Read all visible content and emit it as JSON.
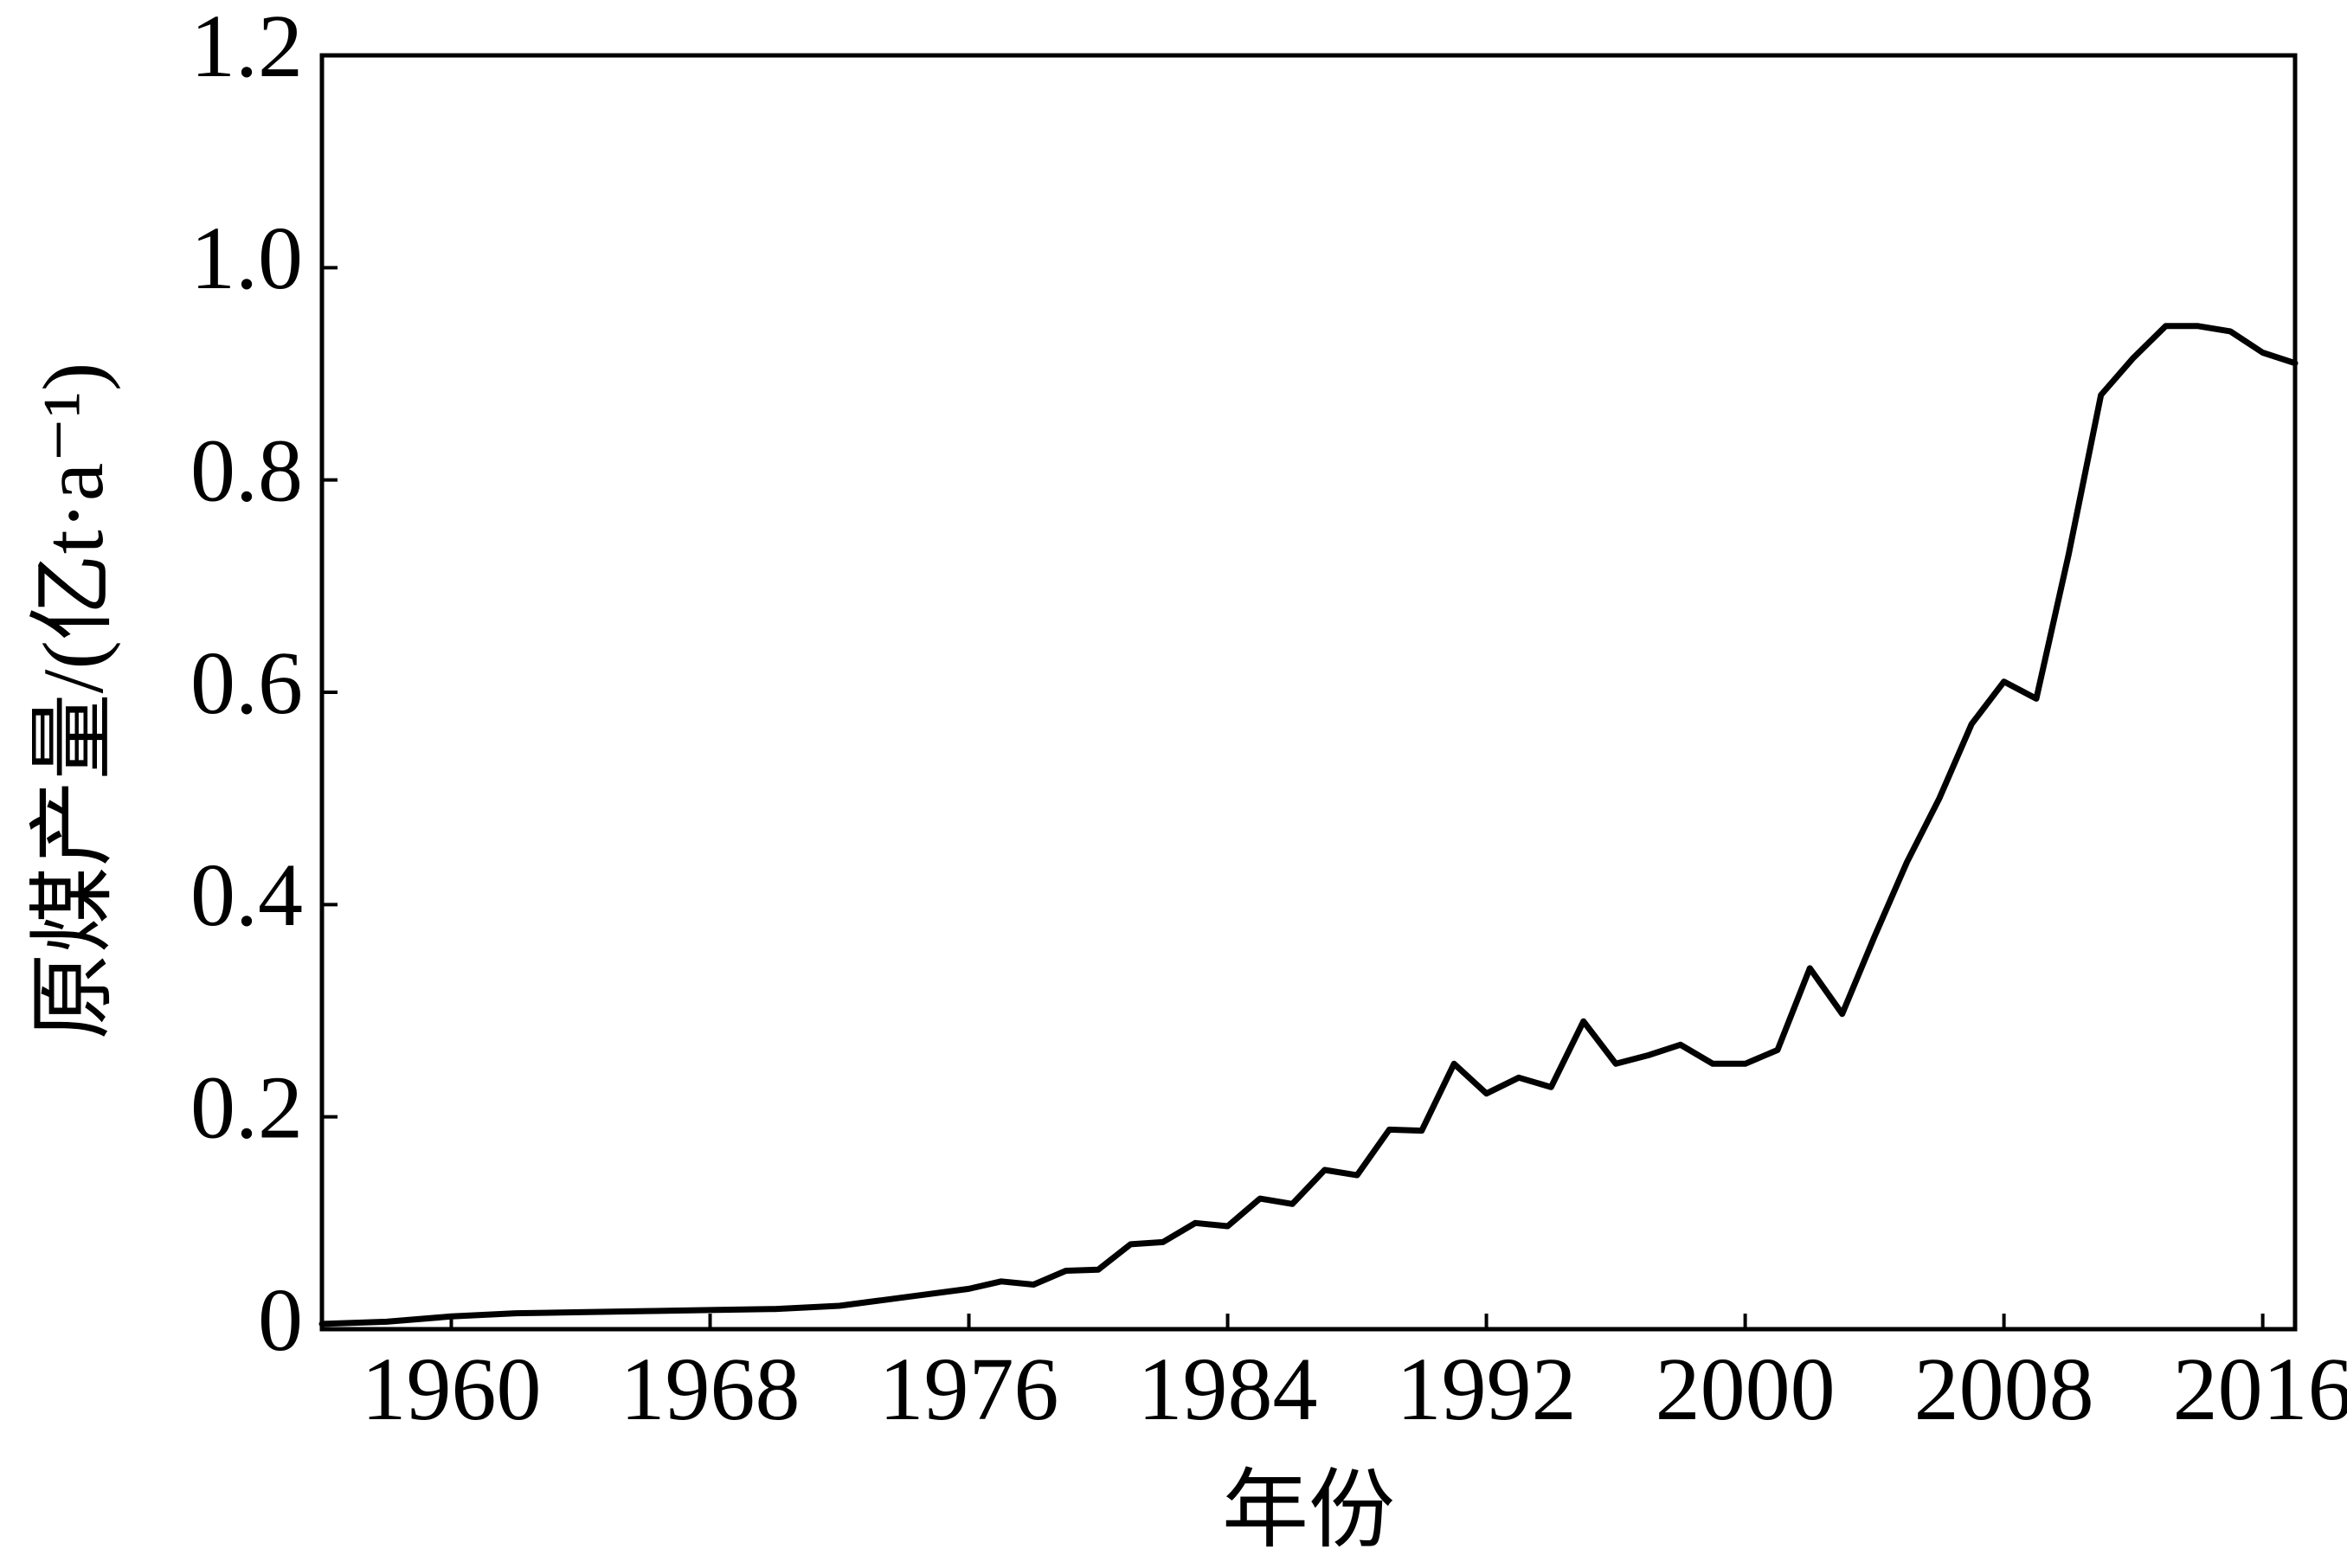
{
  "chart_data": {
    "type": "line",
    "x_label": "年份",
    "y_label": "原煤产量/(亿t·a⁻¹)",
    "x": [
      1956,
      1958,
      1960,
      1962,
      1964,
      1966,
      1968,
      1970,
      1972,
      1974,
      1976,
      1977,
      1978,
      1979,
      1980,
      1981,
      1982,
      1983,
      1984,
      1985,
      1986,
      1987,
      1988,
      1989,
      1990,
      1991,
      1992,
      1993,
      1994,
      1995,
      1996,
      1997,
      1998,
      1999,
      2000,
      2001,
      2002,
      2003,
      2004,
      2005,
      2006,
      2007,
      2008,
      2009,
      2010,
      2011,
      2012,
      2013,
      2014,
      2015,
      2016,
      2017
    ],
    "series": [
      {
        "color": "#000000",
        "values": [
          0.005,
          0.007,
          0.012,
          0.015,
          0.016,
          0.017,
          0.018,
          0.019,
          0.022,
          0.03,
          0.038,
          0.045,
          0.042,
          0.055,
          0.056,
          0.08,
          0.082,
          0.1,
          0.097,
          0.123,
          0.118,
          0.15,
          0.145,
          0.188,
          0.187,
          0.25,
          0.222,
          0.237,
          0.228,
          0.29,
          0.25,
          0.258,
          0.268,
          0.25,
          0.25,
          0.263,
          0.34,
          0.297,
          0.37,
          0.44,
          0.5,
          0.57,
          0.61,
          0.594,
          0.73,
          0.88,
          0.915,
          0.945,
          0.945,
          0.94,
          0.92,
          0.91
        ]
      }
    ],
    "xlim": [
      1956,
      2017
    ],
    "xticks": [
      1960,
      1968,
      1976,
      1984,
      1992,
      2000,
      2008,
      2016
    ],
    "ylim": [
      0,
      1.2
    ],
    "yticks": [
      0,
      0.2,
      0.4,
      0.6,
      0.8,
      {
        "value": 1,
        "label": "1.0"
      },
      1.2
    ],
    "grid": false
  }
}
